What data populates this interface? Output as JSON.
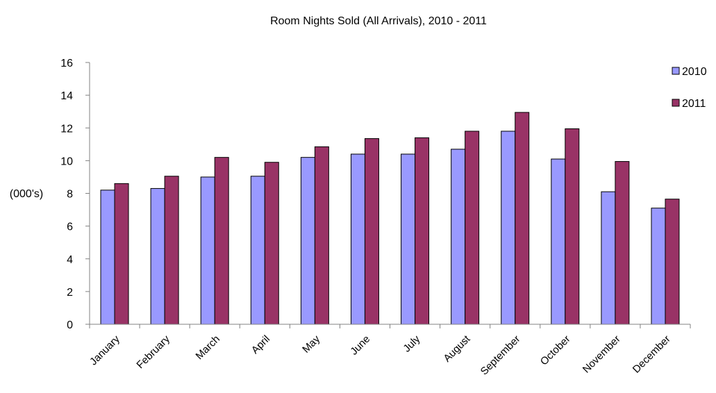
{
  "chart_data": {
    "type": "bar",
    "title": "Room Nights Sold (All Arrivals), 2010 - 2011",
    "ylabel": "(000's)",
    "xlabel": "",
    "ylim": [
      0,
      16
    ],
    "yticks": [
      0,
      2,
      4,
      6,
      8,
      10,
      12,
      14,
      16
    ],
    "grid": false,
    "legend_position": "top-right",
    "categories": [
      "January",
      "February",
      "March",
      "April",
      "May",
      "June",
      "July",
      "August",
      "September",
      "October",
      "November",
      "December"
    ],
    "series": [
      {
        "name": "2010",
        "color": "#9999ff",
        "values": [
          8.2,
          8.3,
          9.0,
          9.05,
          10.2,
          10.4,
          10.4,
          10.7,
          11.8,
          10.1,
          8.1,
          7.1
        ]
      },
      {
        "name": "2011",
        "color": "#993366",
        "values": [
          8.6,
          9.05,
          10.2,
          9.9,
          10.85,
          11.35,
          11.4,
          11.8,
          12.95,
          11.95,
          9.95,
          7.65
        ]
      }
    ]
  }
}
